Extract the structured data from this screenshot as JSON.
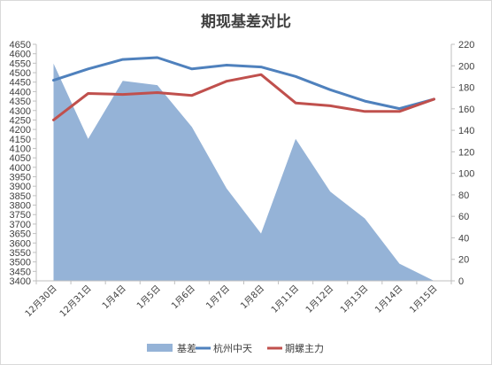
{
  "chart_data": {
    "type": "area-line-combo",
    "title": "期现基差对比",
    "categories": [
      "12月30日",
      "12月31日",
      "1月4日",
      "1月5日",
      "1月6日",
      "1月7日",
      "1月8日",
      "1月11日",
      "1月12日",
      "1月13日",
      "1月14日",
      "1月15日"
    ],
    "left_axis": {
      "min": 3400,
      "max": 4650,
      "step": 50
    },
    "right_axis": {
      "min": 0,
      "max": 220,
      "step": 20
    },
    "series": [
      {
        "name": "基差",
        "type": "area",
        "axis": "right",
        "color": "#95B3D7",
        "values": [
          202,
          132,
          186,
          182,
          143,
          86,
          44,
          132,
          83,
          58,
          16,
          0
        ]
      },
      {
        "name": "杭州中天",
        "type": "line",
        "axis": "left",
        "color": "#4F81BD",
        "values": [
          4460,
          4520,
          4570,
          4580,
          4520,
          4540,
          4530,
          4480,
          4410,
          4350,
          4310,
          4360
        ]
      },
      {
        "name": "期螺主力",
        "type": "line",
        "axis": "left",
        "color": "#C0504D",
        "values": [
          4250,
          4390,
          4385,
          4395,
          4380,
          4455,
          4490,
          4340,
          4325,
          4295,
          4295,
          4360
        ]
      }
    ],
    "legend_position": "bottom",
    "grid": false
  }
}
